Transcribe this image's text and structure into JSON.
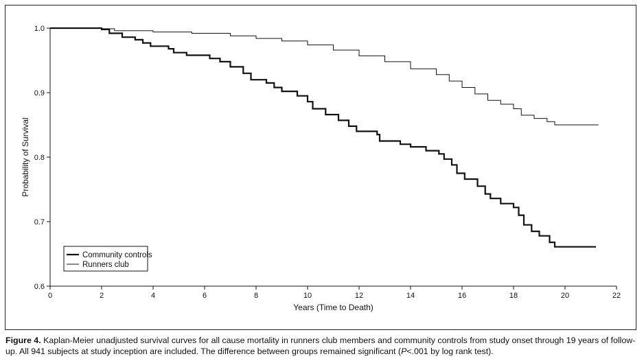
{
  "chart_data": {
    "type": "line",
    "xlabel": "Years (Time to Death)",
    "ylabel": "Probability of Survival",
    "xlim": [
      0,
      22
    ],
    "ylim": [
      0.6,
      1.0
    ],
    "x_ticks": [
      "0",
      "2",
      "4",
      "6",
      "8",
      "10",
      "12",
      "14",
      "16",
      "18",
      "20",
      "22"
    ],
    "y_ticks": [
      "1.0",
      "0.9",
      "0.8",
      "0.7",
      "0.6"
    ],
    "legend_position": "lower-left",
    "grid": false,
    "line_color": "#111111",
    "series": [
      {
        "name": "Community controls",
        "style": "thick",
        "points": [
          [
            0,
            1.0
          ],
          [
            1.0,
            1.0
          ],
          [
            2.0,
            0.998
          ],
          [
            2.3,
            0.992
          ],
          [
            2.8,
            0.986
          ],
          [
            3.3,
            0.982
          ],
          [
            3.6,
            0.977
          ],
          [
            3.9,
            0.972
          ],
          [
            4.6,
            0.968
          ],
          [
            4.8,
            0.962
          ],
          [
            5.3,
            0.958
          ],
          [
            6.2,
            0.953
          ],
          [
            6.6,
            0.948
          ],
          [
            7.0,
            0.94
          ],
          [
            7.5,
            0.93
          ],
          [
            7.8,
            0.92
          ],
          [
            8.4,
            0.915
          ],
          [
            8.7,
            0.908
          ],
          [
            9.0,
            0.902
          ],
          [
            9.6,
            0.895
          ],
          [
            10.0,
            0.886
          ],
          [
            10.2,
            0.875
          ],
          [
            10.7,
            0.866
          ],
          [
            11.2,
            0.857
          ],
          [
            11.6,
            0.848
          ],
          [
            11.9,
            0.84
          ],
          [
            12.7,
            0.835
          ],
          [
            12.8,
            0.825
          ],
          [
            13.6,
            0.82
          ],
          [
            14.0,
            0.816
          ],
          [
            14.6,
            0.81
          ],
          [
            15.1,
            0.805
          ],
          [
            15.3,
            0.797
          ],
          [
            15.6,
            0.788
          ],
          [
            15.8,
            0.775
          ],
          [
            16.1,
            0.766
          ],
          [
            16.6,
            0.755
          ],
          [
            16.9,
            0.743
          ],
          [
            17.1,
            0.736
          ],
          [
            17.5,
            0.728
          ],
          [
            18.0,
            0.722
          ],
          [
            18.2,
            0.71
          ],
          [
            18.4,
            0.695
          ],
          [
            18.7,
            0.685
          ],
          [
            19.0,
            0.678
          ],
          [
            19.4,
            0.668
          ],
          [
            19.6,
            0.661
          ],
          [
            21.2,
            0.661
          ]
        ]
      },
      {
        "name": "Runners club",
        "style": "thin",
        "points": [
          [
            0,
            1.0
          ],
          [
            2.0,
            0.999
          ],
          [
            2.5,
            0.996
          ],
          [
            4.0,
            0.994
          ],
          [
            5.5,
            0.992
          ],
          [
            7.0,
            0.988
          ],
          [
            8.0,
            0.984
          ],
          [
            9.0,
            0.98
          ],
          [
            10.0,
            0.974
          ],
          [
            11.0,
            0.966
          ],
          [
            12.0,
            0.957
          ],
          [
            13.0,
            0.948
          ],
          [
            14.0,
            0.937
          ],
          [
            15.0,
            0.928
          ],
          [
            15.5,
            0.918
          ],
          [
            16.0,
            0.908
          ],
          [
            16.5,
            0.898
          ],
          [
            17.0,
            0.888
          ],
          [
            17.5,
            0.882
          ],
          [
            18.0,
            0.875
          ],
          [
            18.3,
            0.865
          ],
          [
            18.8,
            0.86
          ],
          [
            19.3,
            0.855
          ],
          [
            19.6,
            0.85
          ],
          [
            21.3,
            0.85
          ]
        ]
      }
    ]
  },
  "caption": {
    "figure_label": "Figure 4.",
    "text_part1": " Kaplan-Meier unadjusted survival curves for all cause mortality in runners club members and community controls from study onset through 19 years of follow-up. All 941 subjects at study inception are included. The difference between groups remained significant (",
    "p_symbol": "P",
    "text_part2": "<.001 by log rank test)."
  }
}
